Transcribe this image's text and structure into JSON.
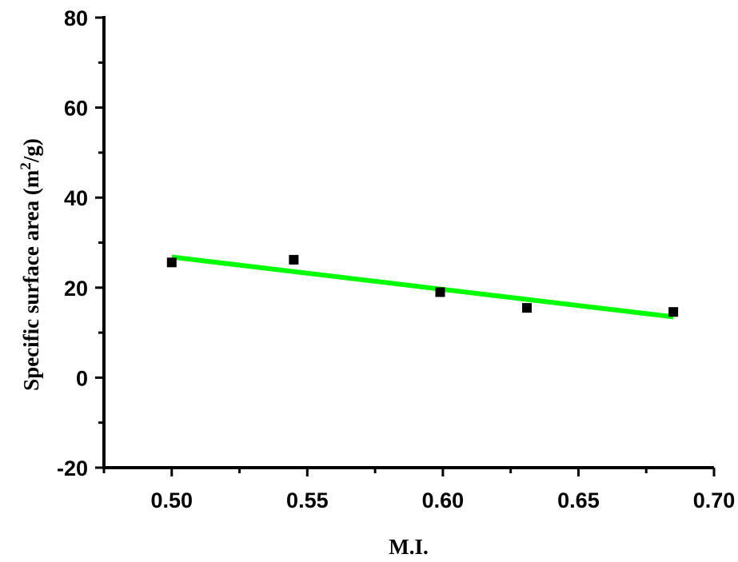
{
  "chart_data": {
    "type": "scatter",
    "xlabel": "M.I.",
    "ylabel_main": "Specific surface area (m",
    "ylabel_sup": "2",
    "ylabel_end": "/g)",
    "xlim": [
      0.475,
      0.7
    ],
    "ylim": [
      -20,
      80
    ],
    "x_ticks": [
      0.5,
      0.55,
      0.6,
      0.65,
      0.7
    ],
    "x_tick_labels": [
      "0.50",
      "0.55",
      "0.60",
      "0.65",
      "0.70"
    ],
    "x_minor_ticks": [
      0.475,
      0.525,
      0.575,
      0.625,
      0.675
    ],
    "y_ticks": [
      -20,
      0,
      20,
      40,
      60,
      80
    ],
    "y_tick_labels": [
      "-20",
      "0",
      "20",
      "40",
      "60",
      "80"
    ],
    "y_minor_ticks": [
      -10,
      10,
      30,
      50,
      70
    ],
    "points": [
      {
        "x": 0.5,
        "y": 25.6
      },
      {
        "x": 0.545,
        "y": 26.2
      },
      {
        "x": 0.599,
        "y": 19.0
      },
      {
        "x": 0.631,
        "y": 15.5
      },
      {
        "x": 0.685,
        "y": 14.6
      }
    ],
    "fit_line": {
      "x": [
        0.5,
        0.685
      ],
      "y": [
        26.8,
        13.5
      ]
    },
    "grid": false,
    "colors": {
      "points": "#000000",
      "fit_line": "#00ff00"
    }
  }
}
